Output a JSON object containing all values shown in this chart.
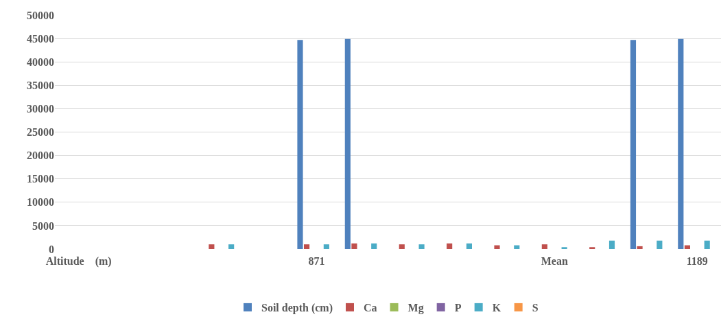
{
  "chart_data": {
    "type": "bar",
    "categories": [
      "Altitude    (m)",
      null,
      null,
      null,
      null,
      "871",
      null,
      null,
      null,
      null,
      "Mean",
      null,
      null,
      "1189"
    ],
    "series": [
      {
        "name": "Soil depth (cm)",
        "color": "#4f81bd",
        "values": [
          0,
          0,
          0,
          0,
          0,
          44700,
          44900,
          0,
          0,
          0,
          0,
          0,
          44700,
          44900
        ]
      },
      {
        "name": "Ca",
        "color": "#c0504d",
        "values": [
          0,
          0,
          0,
          1000,
          0,
          1000,
          1200,
          1000,
          1200,
          800,
          1000,
          400,
          600,
          800
        ]
      },
      {
        "name": "Mg",
        "color": "#9bbb59",
        "values": [
          0,
          0,
          0,
          0,
          0,
          0,
          0,
          0,
          0,
          0,
          0,
          0,
          0,
          0
        ]
      },
      {
        "name": "P",
        "color": "#8064a2",
        "values": [
          0,
          0,
          0,
          0,
          0,
          0,
          0,
          0,
          0,
          0,
          0,
          0,
          0,
          0
        ]
      },
      {
        "name": "K",
        "color": "#4bacc6",
        "values": [
          0,
          0,
          0,
          1000,
          0,
          1000,
          1200,
          1000,
          1200,
          800,
          400,
          1800,
          1800,
          1800
        ]
      },
      {
        "name": "S",
        "color": "#f79646",
        "values": [
          0,
          0,
          0,
          0,
          0,
          0,
          0,
          0,
          0,
          0,
          0,
          0,
          0,
          0
        ]
      }
    ],
    "ylim": [
      0,
      50000
    ],
    "yticks": [
      0,
      5000,
      10000,
      15000,
      20000,
      25000,
      30000,
      35000,
      40000,
      45000,
      50000
    ],
    "grid": "y",
    "legend": "bottom"
  }
}
